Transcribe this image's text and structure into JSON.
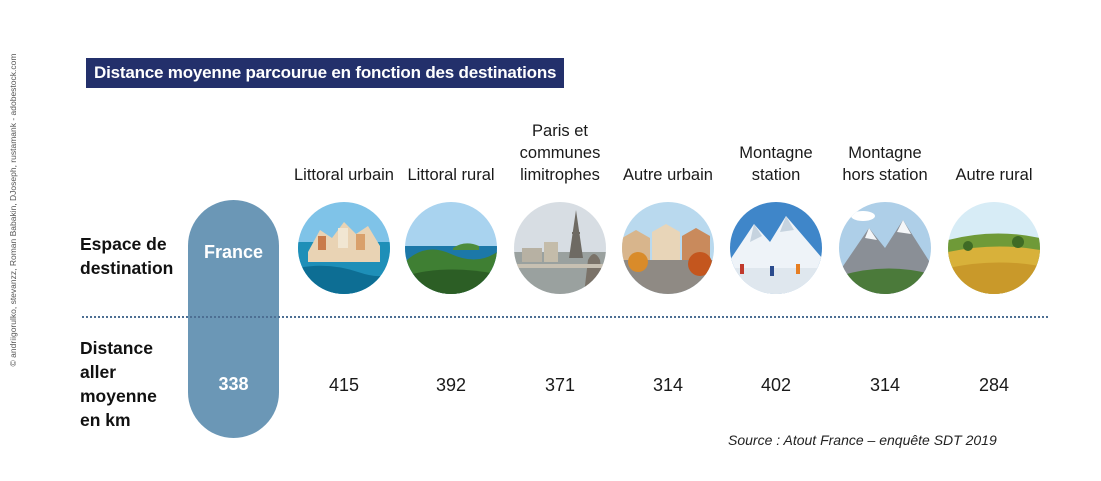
{
  "credit": "© andriigorulko, stevanzz, Roman Babakin, DJoseph, rustamank - adobestock.com",
  "title": "Distance moyenne parcourue en fonction des destinations",
  "row_labels": {
    "destination": "Espace de destination",
    "distance": "Distance aller moyenne en km"
  },
  "france": {
    "label": "France",
    "value": "338"
  },
  "chart_data": {
    "type": "table",
    "title": "Distance moyenne parcourue en fonction des destinations",
    "row_headers": [
      "Espace de destination",
      "Distance aller moyenne en km"
    ],
    "categories": [
      "France",
      "Littoral urbain",
      "Littoral rural",
      "Paris et communes limitrophes",
      "Autre urbain",
      "Montagne station",
      "Montagne hors station",
      "Autre rural"
    ],
    "values": [
      338,
      415,
      392,
      371,
      314,
      402,
      314,
      284
    ],
    "destinations": [
      {
        "label": "Littoral urbain",
        "value": "415",
        "photo": "coastal-town-icon"
      },
      {
        "label": "Littoral rural",
        "value": "392",
        "photo": "coastal-countryside-icon"
      },
      {
        "label": "Paris et communes limitrophes",
        "value": "371",
        "photo": "paris-skyline-icon"
      },
      {
        "label": "Autre urbain",
        "value": "314",
        "photo": "town-street-icon"
      },
      {
        "label": "Montagne station",
        "value": "402",
        "photo": "ski-resort-icon"
      },
      {
        "label": "Montagne hors station",
        "value": "314",
        "photo": "mountain-landscape-icon"
      },
      {
        "label": "Autre rural",
        "value": "284",
        "photo": "countryside-fields-icon"
      }
    ]
  },
  "source": "Source : Atout France – enquête SDT 2019",
  "colors": {
    "title_bg": "#23306b",
    "france_pill": "#6b97b6",
    "divider": "#4d6f93"
  }
}
